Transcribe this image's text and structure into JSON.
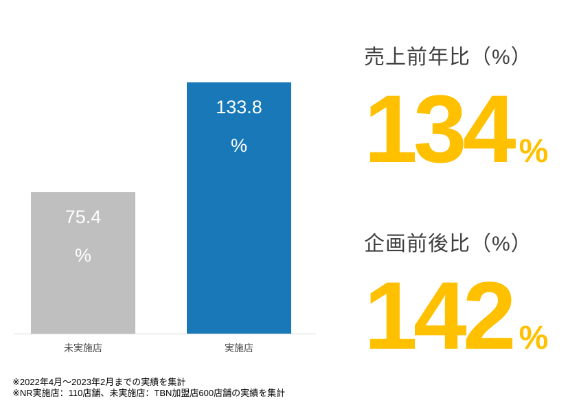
{
  "chart_data": {
    "type": "bar",
    "title": "",
    "categories": [
      "未実施店",
      "実施店"
    ],
    "values": [
      75.4,
      133.8
    ],
    "value_display": [
      {
        "number": "75.4",
        "unit": "%"
      },
      {
        "number": "133.8",
        "unit": "%"
      }
    ],
    "bar_colors": [
      "#bfbfbf",
      "#1878b8"
    ],
    "xlabel": "",
    "ylabel": "",
    "ylim": [
      0,
      140
    ],
    "grid": false,
    "legend": false,
    "value_label_position": "inside-top"
  },
  "stats": {
    "sales_yoy": {
      "title": "売上前年比（%）",
      "value": "134",
      "unit": "%"
    },
    "plan_before_after": {
      "title": "企画前後比（%）",
      "value": "142",
      "unit": "%"
    }
  },
  "footnotes": {
    "line1": "※2022年4月～2023年2月までの実績を集計",
    "line2": "※NR実施店：110店舗、未実施店：TBN加盟店600店舗の実績を集計"
  },
  "colors": {
    "accent_gold": "#ffc000",
    "bar_blue": "#1878b8",
    "bar_gray": "#bfbfbf",
    "text_dark": "#404040",
    "value_label_white": "#ffffff",
    "axis_line": "#d9d9d9",
    "background": "#ffffff"
  }
}
